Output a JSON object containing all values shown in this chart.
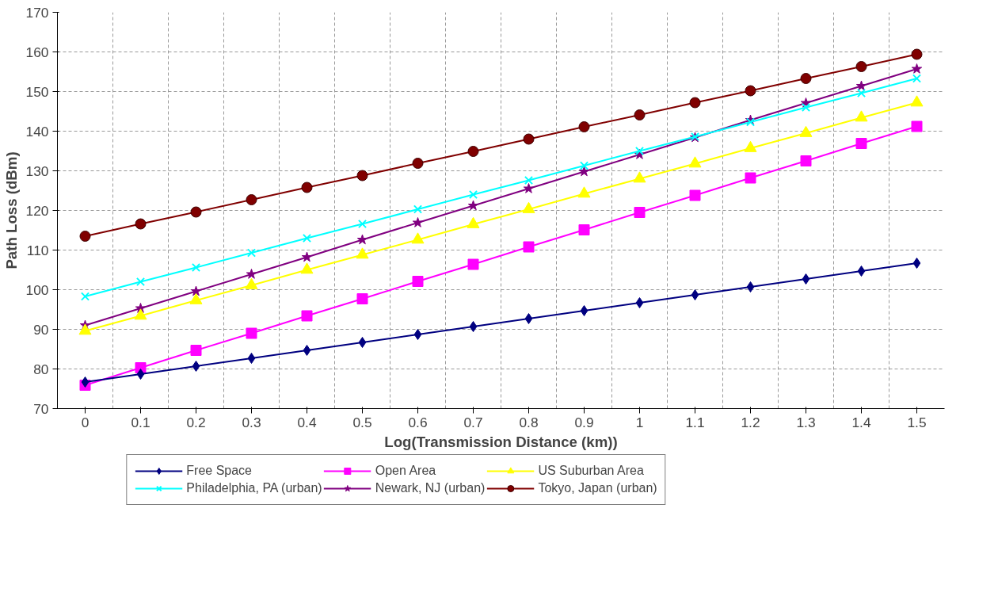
{
  "chart_data": {
    "type": "line",
    "xlabel": "Log(Transmission Distance (km))",
    "ylabel": "Path Loss (dBm)",
    "categories": [
      "0",
      "0.1",
      "0.2",
      "0.3",
      "0.4",
      "0.5",
      "0.6",
      "0.7",
      "0.8",
      "0.9",
      "1",
      "1.1",
      "1.2",
      "1.3",
      "1.4",
      "1.5"
    ],
    "ylim": [
      70,
      170
    ],
    "yticks": [
      70,
      80,
      90,
      100,
      110,
      120,
      130,
      140,
      150,
      160,
      170
    ],
    "grid": true,
    "legend": "bottom",
    "line_style": "solid",
    "series": [
      {
        "name": "Free Space",
        "color": "#000080",
        "marker": "diamond",
        "values": [
          76.7,
          78.7,
          80.7,
          82.7,
          84.7,
          86.7,
          88.7,
          90.7,
          92.7,
          94.7,
          96.7,
          98.7,
          100.7,
          102.7,
          104.7,
          106.7
        ]
      },
      {
        "name": "Open Area",
        "color": "#ff00ff",
        "marker": "square",
        "values": [
          75.9,
          80.3,
          84.7,
          89.0,
          93.4,
          97.7,
          102.1,
          106.4,
          110.8,
          115.1,
          119.5,
          123.8,
          128.2,
          132.5,
          136.9,
          141.2
        ]
      },
      {
        "name": "US Suburban Area",
        "color": "#ffff00",
        "marker": "triangle",
        "values": [
          89.6,
          93.4,
          97.3,
          101.1,
          105.0,
          108.8,
          112.6,
          116.5,
          120.3,
          124.2,
          128.0,
          131.8,
          135.7,
          139.5,
          143.4,
          147.2
        ]
      },
      {
        "name": "Philadelphia, PA (urban)",
        "color": "#00ffff",
        "marker": "cross",
        "values": [
          98.3,
          102.0,
          105.6,
          109.3,
          113.0,
          116.6,
          120.3,
          124.0,
          127.6,
          131.3,
          135.0,
          138.6,
          142.3,
          146.0,
          149.6,
          153.3
        ]
      },
      {
        "name": "Newark, NJ (urban)",
        "color": "#800080",
        "marker": "star",
        "values": [
          91.0,
          95.3,
          99.6,
          103.9,
          108.2,
          112.6,
          116.9,
          121.2,
          125.5,
          129.8,
          134.1,
          138.4,
          142.8,
          147.1,
          151.4,
          155.7
        ]
      },
      {
        "name": "Tokyo, Japan (urban)",
        "color": "#800000",
        "marker": "circle",
        "values": [
          113.5,
          116.6,
          119.6,
          122.7,
          125.8,
          128.8,
          131.9,
          134.9,
          138.0,
          141.1,
          144.1,
          147.2,
          150.2,
          153.3,
          156.3,
          159.4
        ]
      }
    ]
  }
}
